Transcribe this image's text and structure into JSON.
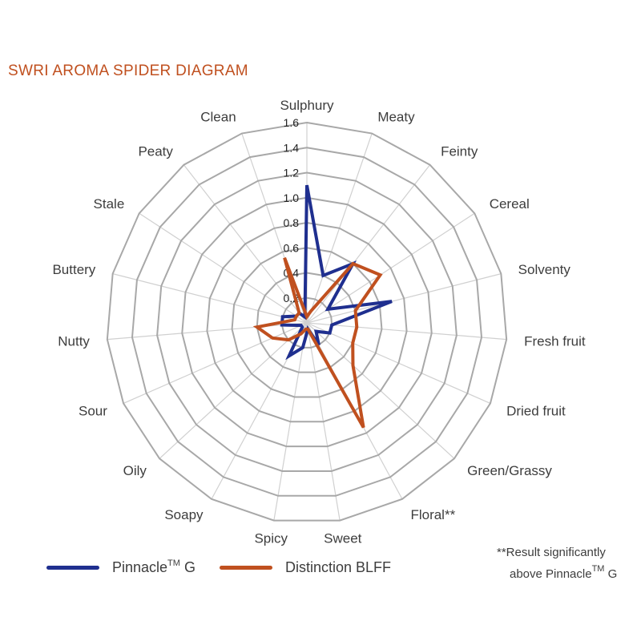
{
  "title": "SWRI AROMA SPIDER DIAGRAM",
  "legend": {
    "pinnacle": {
      "name": "Pinnacle",
      "sup": "TM",
      "suffix": " G"
    },
    "distinction": {
      "name": "Distinction BLFF"
    }
  },
  "footnote": {
    "line1": "**Result significantly",
    "line2_prefix": "above Pinnacle",
    "line2_sup": "TM",
    "line2_suffix": " G"
  },
  "colors": {
    "pinnacle": "#1f2f8f",
    "distinction": "#c0501f",
    "grid": "#a8a8a8",
    "spoke": "#d0d0d0"
  },
  "chart_data": {
    "type": "radar",
    "title": "SWRI AROMA SPIDER DIAGRAM",
    "axes": [
      "Sulphury",
      "Meaty",
      "Feinty",
      "Cereal",
      "Solventy",
      "Fresh fruit",
      "Dried fruit",
      "Green/Grassy",
      "Floral**",
      "Sweet",
      "Spicy",
      "Soapy",
      "Oily",
      "Sour",
      "Nutty",
      "Buttery",
      "Stale",
      "Peaty",
      "Clean"
    ],
    "rlim": [
      0,
      1.6
    ],
    "rticks": [
      0.2,
      0.4,
      0.6,
      0.8,
      1.0,
      1.2,
      1.4,
      1.6
    ],
    "rtick_labels": [
      "0.2",
      "0.4",
      "0.6",
      "0.8",
      "1.0",
      "1.2",
      "1.4",
      "1.6"
    ],
    "grid": true,
    "legend_position": "bottom",
    "series": [
      {
        "name": "Pinnacle™ G",
        "color": "#1f2f8f",
        "values": [
          1.1,
          0.4,
          0.6,
          0.2,
          0.7,
          0.2,
          0.2,
          0.1,
          0.2,
          0.05,
          0.2,
          0.3,
          0.05,
          0.05,
          0.2,
          0.2,
          0.1,
          0.1,
          0.05
        ]
      },
      {
        "name": "Distinction BLFF",
        "color": "#c0501f",
        "values": [
          0.05,
          0.1,
          0.6,
          0.7,
          0.4,
          0.4,
          0.4,
          0.5,
          0.95,
          0.05,
          0.05,
          0.1,
          0.2,
          0.3,
          0.4,
          0.1,
          0.1,
          0.1,
          0.55
        ]
      }
    ]
  }
}
